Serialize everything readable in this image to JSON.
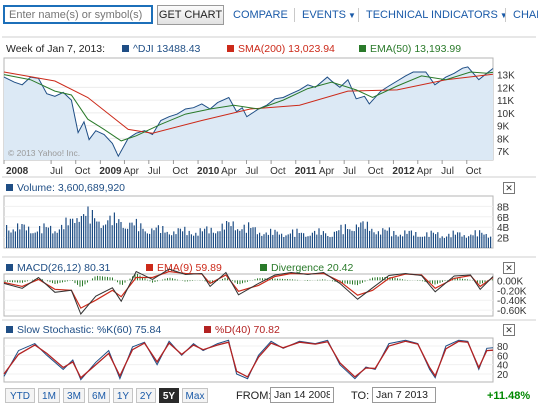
{
  "topbar": {
    "search_placeholder": "Enter name(s) or symbol(s)",
    "get_chart_label": "GET CHART",
    "compare_label": "COMPARE",
    "events_label": "EVENTS",
    "technical_label": "TECHNICAL INDICATORS",
    "overflow_label": "CHAF",
    "arrow_glyph": "▼"
  },
  "header": {
    "week_label": "Week of Jan 7, 2013:",
    "dji": "^DJI 13488.43",
    "sma": "SMA(200) 13,023.94",
    "ema": "EMA(50) 13,193.99",
    "copyright": "© 2013 Yahoo! Inc."
  },
  "panels": {
    "volume_label": "Volume: 3,600,689,920",
    "macd_label": "MACD(26,12) 80.31",
    "macd_ema_label": "EMA(9) 59.89",
    "divergence_label": "Divergence 20.42",
    "stoch_k_label": "Slow Stochastic: %K(60) 75.84",
    "stoch_d_label": "%D(40) 70.82",
    "close_glyph": "✕"
  },
  "colors": {
    "price": "#1f4e85",
    "sma": "#cc2a1a",
    "ema": "#2a7a2a",
    "volume": "#1f4e85",
    "macd": "#333333",
    "macd_ema": "#cc2a1a",
    "stoch_k": "#1f4e85",
    "stoch_d": "#b32222",
    "area_fill": "#dce9f5"
  },
  "chart_data": [
    {
      "type": "line",
      "name": "price",
      "x_axis": {
        "start": "2008-01-07",
        "end": "2013-01-07",
        "labels": [
          "2008",
          "Jul",
          "Oct",
          "2009",
          "Apr",
          "Jul",
          "Oct",
          "2010",
          "Apr",
          "Jul",
          "Oct",
          "2011",
          "Apr",
          "Jul",
          "Oct",
          "2012",
          "Apr",
          "Jul",
          "Oct"
        ]
      },
      "y_tick_labels": [
        "13K",
        "12K",
        "11K",
        "10K",
        "9K",
        "8K",
        "7K"
      ],
      "y_ticks": [
        13000,
        12000,
        11000,
        10000,
        9000,
        8000,
        7000
      ],
      "ylim": [
        6300,
        14300
      ],
      "series": [
        {
          "name": "^DJI",
          "x": [
            "2008-01-07",
            "2008-02-15",
            "2008-03-15",
            "2008-04-15",
            "2008-05-15",
            "2008-06-15",
            "2008-07-15",
            "2008-08-15",
            "2008-09-15",
            "2008-10-10",
            "2008-11-01",
            "2008-11-20",
            "2008-12-15",
            "2009-01-15",
            "2009-02-15",
            "2009-03-09",
            "2009-04-15",
            "2009-05-15",
            "2009-06-15",
            "2009-07-15",
            "2009-08-15",
            "2009-09-15",
            "2009-10-15",
            "2009-11-15",
            "2009-12-15",
            "2010-01-15",
            "2010-02-15",
            "2010-03-15",
            "2010-04-26",
            "2010-05-25",
            "2010-06-15",
            "2010-07-02",
            "2010-08-15",
            "2010-09-15",
            "2010-10-15",
            "2010-11-15",
            "2010-12-15",
            "2011-01-15",
            "2011-02-15",
            "2011-03-15",
            "2011-04-29",
            "2011-05-15",
            "2011-06-15",
            "2011-07-15",
            "2011-08-15",
            "2011-09-15",
            "2011-10-03",
            "2011-11-15",
            "2011-12-15",
            "2012-01-15",
            "2012-02-15",
            "2012-03-15",
            "2012-05-01",
            "2012-06-04",
            "2012-07-15",
            "2012-08-15",
            "2012-09-15",
            "2012-10-05",
            "2012-11-15",
            "2012-12-15",
            "2013-01-07"
          ],
          "values": [
            12800,
            12400,
            12200,
            12800,
            12700,
            11500,
            11300,
            11600,
            11000,
            8450,
            9300,
            7900,
            8600,
            8300,
            7600,
            6600,
            8000,
            8400,
            8600,
            8300,
            9400,
            9700,
            9900,
            10300,
            10400,
            10700,
            10300,
            10800,
            11200,
            10100,
            10400,
            9700,
            10300,
            10600,
            11100,
            11200,
            11500,
            11800,
            12200,
            12000,
            12800,
            12500,
            12000,
            12600,
            11100,
            11300,
            10700,
            11700,
            12100,
            12500,
            12900,
            13200,
            13200,
            12200,
            12800,
            13100,
            13500,
            13600,
            12600,
            13100,
            13480
          ]
        },
        {
          "name": "SMA(200)",
          "x": [
            "2008-01-07",
            "2008-07-15",
            "2008-11-15",
            "2009-04-15",
            "2009-07-15",
            "2010-01-15",
            "2010-07-15",
            "2011-01-15",
            "2011-07-15",
            "2012-01-15",
            "2012-07-15",
            "2013-01-07"
          ],
          "values": [
            13200,
            12500,
            11200,
            8700,
            8400,
            9400,
            10300,
            10600,
            11700,
            11800,
            12600,
            13020
          ]
        },
        {
          "name": "EMA(50)",
          "x": [
            "2008-01-07",
            "2008-04-15",
            "2008-07-15",
            "2008-09-15",
            "2008-11-15",
            "2009-01-15",
            "2009-03-20",
            "2009-05-15",
            "2009-08-15",
            "2009-11-15",
            "2010-02-15",
            "2010-05-15",
            "2010-08-15",
            "2010-11-15",
            "2011-02-15",
            "2011-05-15",
            "2011-08-15",
            "2011-10-15",
            "2012-01-15",
            "2012-04-15",
            "2012-07-15",
            "2012-10-15",
            "2012-12-15",
            "2013-01-07"
          ],
          "values": [
            13000,
            12600,
            11700,
            11400,
            9500,
            8700,
            7800,
            8200,
            9100,
            9900,
            10300,
            10600,
            10300,
            11000,
            11900,
            12400,
            11800,
            11200,
            12100,
            12900,
            12600,
            13200,
            13100,
            13190
          ]
        }
      ]
    },
    {
      "type": "bar",
      "name": "volume",
      "y_tick_labels": [
        "8B",
        "6B",
        "4B",
        "2B"
      ],
      "y_ticks": [
        8,
        6,
        4,
        2
      ],
      "ylim": [
        0,
        10
      ],
      "unit": "billions of shares",
      "x": [
        "2008-01-07",
        "2008-04-15",
        "2008-07-15",
        "2008-09-15",
        "2008-10-15",
        "2008-12-15",
        "2009-03-15",
        "2009-06-15",
        "2009-09-15",
        "2010-01-15",
        "2010-05-15",
        "2010-09-15",
        "2011-01-15",
        "2011-05-15",
        "2011-08-15",
        "2011-11-15",
        "2012-03-15",
        "2012-07-15",
        "2012-11-15",
        "2013-01-07"
      ],
      "values": [
        5.6,
        4.8,
        5.0,
        6.5,
        9.5,
        7.0,
        6.8,
        5.0,
        4.3,
        4.2,
        6.0,
        3.8,
        3.8,
        3.8,
        6.0,
        4.3,
        3.6,
        3.4,
        3.6,
        3.6
      ]
    },
    {
      "type": "line",
      "name": "macd",
      "y_tick_labels": [
        "0.00K",
        "-0.20K",
        "-0.40K",
        "-0.60K"
      ],
      "y_ticks": [
        0,
        -200,
        -400,
        -600
      ],
      "ylim": [
        -720,
        130
      ],
      "series": [
        {
          "name": "MACD(26,12)",
          "x": [
            "2008-01-07",
            "2008-03-15",
            "2008-05-15",
            "2008-07-15",
            "2008-09-15",
            "2008-10-20",
            "2008-12-15",
            "2009-02-15",
            "2009-03-20",
            "2009-05-15",
            "2009-07-15",
            "2009-09-15",
            "2009-11-15",
            "2010-01-15",
            "2010-02-15",
            "2010-04-15",
            "2010-06-01",
            "2010-08-15",
            "2010-10-15",
            "2010-12-15",
            "2011-02-15",
            "2011-04-15",
            "2011-06-15",
            "2011-08-20",
            "2011-10-15",
            "2011-12-15",
            "2012-02-15",
            "2012-04-15",
            "2012-06-05",
            "2012-08-15",
            "2012-10-15",
            "2012-11-20",
            "2013-01-07"
          ],
          "values": [
            -60,
            -160,
            60,
            -240,
            -200,
            -680,
            -320,
            -150,
            -420,
            180,
            20,
            230,
            120,
            140,
            -120,
            160,
            -290,
            -60,
            110,
            160,
            120,
            160,
            -60,
            -380,
            -150,
            100,
            140,
            100,
            -230,
            90,
            110,
            -180,
            80
          ]
        },
        {
          "name": "EMA(9)",
          "x": [
            "2008-01-07",
            "2008-03-15",
            "2008-05-15",
            "2008-07-15",
            "2008-09-15",
            "2008-10-20",
            "2008-12-15",
            "2009-02-15",
            "2009-03-20",
            "2009-05-15",
            "2009-07-15",
            "2009-09-15",
            "2009-11-15",
            "2010-01-15",
            "2010-02-15",
            "2010-04-15",
            "2010-06-01",
            "2010-08-15",
            "2010-10-15",
            "2010-12-15",
            "2011-02-15",
            "2011-04-15",
            "2011-06-15",
            "2011-08-20",
            "2011-10-15",
            "2011-12-15",
            "2012-02-15",
            "2012-04-15",
            "2012-06-05",
            "2012-08-15",
            "2012-10-15",
            "2012-11-20",
            "2013-01-07"
          ],
          "values": [
            -40,
            -120,
            20,
            -180,
            -200,
            -560,
            -400,
            -200,
            -330,
            60,
            60,
            180,
            140,
            130,
            -60,
            110,
            -220,
            -100,
            80,
            140,
            130,
            140,
            -20,
            -300,
            -200,
            40,
            130,
            110,
            -160,
            40,
            100,
            -120,
            60
          ]
        }
      ]
    },
    {
      "type": "line",
      "name": "slow-stochastic",
      "y_tick_labels": [
        "80",
        "60",
        "40",
        "20"
      ],
      "y_ticks": [
        80,
        60,
        40,
        20
      ],
      "ylim": [
        3,
        97
      ],
      "series": [
        {
          "name": "%K(60)",
          "x": [
            "2008-01-07",
            "2008-03-01",
            "2008-05-01",
            "2008-06-15",
            "2008-08-15",
            "2008-09-20",
            "2008-10-20",
            "2008-12-15",
            "2009-02-01",
            "2009-03-15",
            "2009-05-01",
            "2009-06-15",
            "2009-08-01",
            "2009-09-15",
            "2009-11-01",
            "2009-12-15",
            "2010-01-20",
            "2010-03-15",
            "2010-04-25",
            "2010-05-25",
            "2010-07-05",
            "2010-08-15",
            "2010-10-01",
            "2010-11-15",
            "2011-01-15",
            "2011-03-15",
            "2011-04-30",
            "2011-06-15",
            "2011-08-10",
            "2011-09-20",
            "2011-10-25",
            "2011-12-15",
            "2012-02-15",
            "2012-04-01",
            "2012-05-15",
            "2012-06-05",
            "2012-07-15",
            "2012-09-01",
            "2012-10-05",
            "2012-11-15",
            "2012-12-15",
            "2013-01-07"
          ],
          "values": [
            15,
            70,
            85,
            60,
            30,
            50,
            8,
            45,
            70,
            10,
            78,
            88,
            40,
            90,
            60,
            85,
            70,
            85,
            92,
            20,
            10,
            60,
            90,
            75,
            90,
            85,
            92,
            40,
            10,
            35,
            30,
            85,
            92,
            85,
            30,
            12,
            80,
            92,
            90,
            30,
            75,
            76
          ]
        },
        {
          "name": "%D(40)",
          "x": [
            "2008-01-07",
            "2008-03-01",
            "2008-05-01",
            "2008-06-15",
            "2008-08-15",
            "2008-09-20",
            "2008-10-20",
            "2008-12-15",
            "2009-02-01",
            "2009-03-15",
            "2009-05-01",
            "2009-06-15",
            "2009-08-01",
            "2009-09-15",
            "2009-11-01",
            "2009-12-15",
            "2010-01-20",
            "2010-03-15",
            "2010-04-25",
            "2010-05-25",
            "2010-07-05",
            "2010-08-15",
            "2010-10-01",
            "2010-11-15",
            "2011-01-15",
            "2011-03-15",
            "2011-04-30",
            "2011-06-15",
            "2011-08-10",
            "2011-09-20",
            "2011-10-25",
            "2011-12-15",
            "2012-02-15",
            "2012-04-01",
            "2012-05-15",
            "2012-06-05",
            "2012-07-15",
            "2012-09-01",
            "2012-10-05",
            "2012-11-15",
            "2012-12-15",
            "2013-01-07"
          ],
          "values": [
            20,
            62,
            82,
            64,
            34,
            46,
            12,
            40,
            64,
            16,
            72,
            86,
            46,
            86,
            62,
            82,
            72,
            82,
            88,
            26,
            14,
            56,
            86,
            76,
            88,
            84,
            89,
            44,
            14,
            33,
            32,
            80,
            90,
            84,
            34,
            16,
            74,
            90,
            88,
            34,
            70,
            71
          ]
        }
      ]
    }
  ],
  "bottombar": {
    "ranges": [
      "YTD",
      "1M",
      "3M",
      "6M",
      "1Y",
      "2Y",
      "5Y",
      "Max"
    ],
    "active_range": "5Y",
    "from_label": "FROM:",
    "from_value": "Jan 14 2008",
    "to_label": "TO:",
    "to_value": "Jan 7 2013",
    "change": "+11.48%"
  }
}
